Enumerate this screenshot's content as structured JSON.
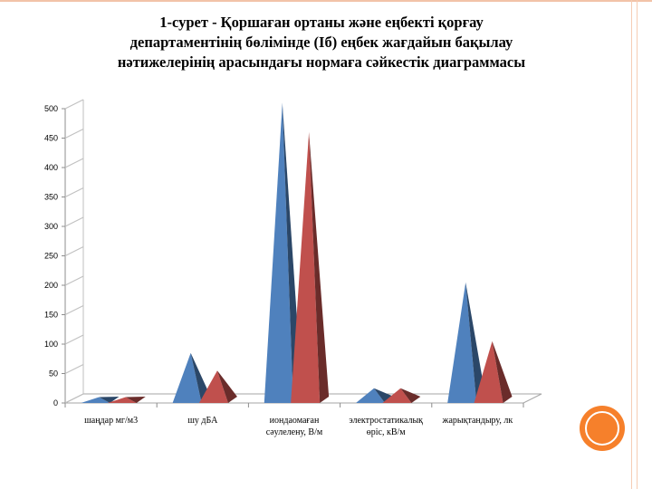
{
  "title_lines": [
    "1-сурет - Қоршаған ортаны және еңбекті қорғау",
    "департаментінің бөлімінде (Іб) еңбек жағдайын бақылау",
    "нәтижелерінің арасындағы нормаға сәйкестік диаграммасы"
  ],
  "chart_data": {
    "type": "bar",
    "subtype": "3d-pyramid",
    "title": "1-сурет - Қоршаған ортаны және еңбекті қорғау департаментінің бөлімінде (Іб) еңбек жағдайын бақылау нәтижелерінің арасындағы нормаға сәйкестік диаграммасы",
    "categories": [
      [
        "шаңдар мг/м3"
      ],
      [
        "шу дБА"
      ],
      [
        "иондаомаған",
        "сәулелену, В/м"
      ],
      [
        "электростатикалық",
        "өріс, кВ/м"
      ],
      [
        "жарықтандыру, лк"
      ]
    ],
    "series": [
      {
        "color": "#4f81bd",
        "values": [
          10,
          85,
          510,
          25,
          205
        ]
      },
      {
        "color": "#c0504d",
        "values": [
          10,
          55,
          460,
          25,
          105
        ]
      }
    ],
    "yticks": [
      0,
      50,
      100,
      150,
      200,
      250,
      300,
      350,
      400,
      450,
      500
    ],
    "ylim": [
      0,
      500
    ],
    "grid": false,
    "legend": "none"
  },
  "colors": {
    "accent_circle": "#f6802b",
    "frame": "#f2c3a8"
  }
}
